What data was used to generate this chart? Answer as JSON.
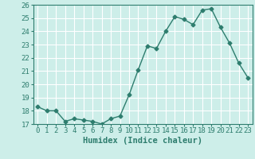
{
  "x": [
    0,
    1,
    2,
    3,
    4,
    5,
    6,
    7,
    8,
    9,
    10,
    11,
    12,
    13,
    14,
    15,
    16,
    17,
    18,
    19,
    20,
    21,
    22,
    23
  ],
  "y": [
    18.3,
    18.0,
    18.0,
    17.2,
    17.4,
    17.3,
    17.2,
    17.0,
    17.4,
    17.6,
    19.2,
    21.1,
    22.9,
    22.7,
    24.0,
    25.1,
    24.9,
    24.5,
    25.6,
    25.7,
    24.3,
    23.1,
    21.6,
    20.5
  ],
  "line_color": "#2e7d6e",
  "marker": "D",
  "marker_size": 2.5,
  "linewidth": 1.0,
  "xlabel": "Humidex (Indice chaleur)",
  "ylim": [
    17,
    26
  ],
  "xlim": [
    -0.5,
    23.5
  ],
  "yticks": [
    17,
    18,
    19,
    20,
    21,
    22,
    23,
    24,
    25,
    26
  ],
  "xticks": [
    0,
    1,
    2,
    3,
    4,
    5,
    6,
    7,
    8,
    9,
    10,
    11,
    12,
    13,
    14,
    15,
    16,
    17,
    18,
    19,
    20,
    21,
    22,
    23
  ],
  "background_color": "#cdeee9",
  "grid_color": "#ffffff",
  "tick_color": "#2e7d6e",
  "label_color": "#2e7d6e",
  "xlabel_fontsize": 7.5,
  "tick_fontsize": 6.5
}
